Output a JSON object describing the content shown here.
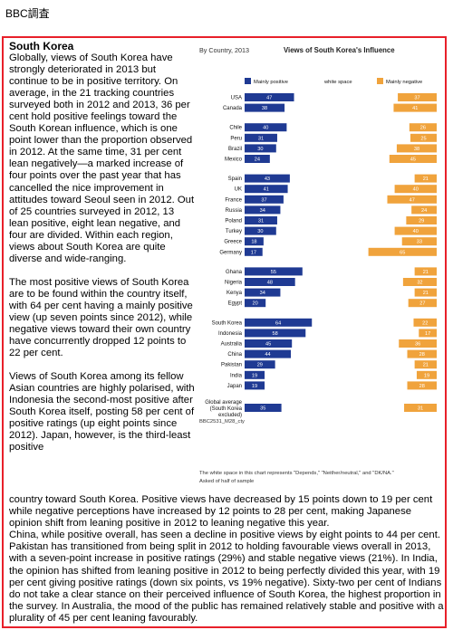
{
  "header": "BBC調査",
  "article": {
    "title": "South Korea",
    "paragraphs": [
      "Globally, views of South Korea have strongly deteriorated in 2013 but continue to be in positive territory. On average, in the 21 tracking countries surveyed both in 2012 and 2013, 36 per cent hold positive feelings toward the South Korean influence, which is one point lower than the proportion observed in 2012. At the same time, 31 per cent lean negatively—a marked increase of four points over the past year that has cancelled the nice improvement in attitudes toward Seoul seen in 2012. Out of 25 countries surveyed in 2012, 13 lean positive, eight lean negative, and four are divided. Within each region, views about South Korea are quite diverse and wide-ranging.",
      "The most positive views of South Korea are to be found within the country itself, with 64 per cent having a mainly positive view (up seven points since 2012), while negative views toward their own country have concurrently dropped 12 points to 22 per cent.",
      "Views of South Korea among its fellow Asian countries are highly polarised, with Indonesia the second-most positive after South Korea itself, posting 58 per cent of positive ratings (up eight points since 2012). Japan, however, is the third-least positive"
    ],
    "bottom_paragraphs": [
      "country toward South Korea. Positive views have decreased by 15 points down to 19 per cent while negative perceptions have increased by 12 points to 28 per cent, making Japanese opinion shift from leaning positive in 2012 to leaning negative this year.",
      " China, while positive overall, has seen a decline in positive views by eight points to 44 per cent. Pakistan has transitioned from being split in 2012 to holding favourable views overall in 2013, with a seven-point increase in positive ratings (29%) and stable negative views (21%). In India, the opinion has shifted from leaning positive in 2012 to being perfectly divided this year, with 19 per cent giving positive ratings (down six points, vs 19% negative). Sixty-two per cent of Indians do not take a clear stance on their perceived influence of South Korea, the highest proportion in the survey. In Australia, the mood of the public has remained relatively stable and positive with a plurality of 45 per cent leaning favourably."
    ]
  },
  "colors": {
    "positive": "#1f3a93",
    "negative": "#f0a33c",
    "frame": "#e8202a"
  },
  "chart_data": {
    "type": "bar",
    "subtitle": "By Country, 2013",
    "title": "Views of South Korea's Influence",
    "legend": [
      "Mainly positive",
      "white space",
      "Mainly negative"
    ],
    "groups": [
      [
        [
          "USA",
          47,
          37
        ],
        [
          "Canada",
          38,
          41
        ]
      ],
      [
        [
          "Chile",
          40,
          26
        ],
        [
          "Peru",
          31,
          25
        ],
        [
          "Brazil",
          30,
          38
        ],
        [
          "Mexico",
          24,
          45
        ]
      ],
      [
        [
          "Spain",
          43,
          21
        ],
        [
          "UK",
          41,
          40
        ],
        [
          "France",
          37,
          47
        ],
        [
          "Russia",
          34,
          24
        ],
        [
          "Poland",
          31,
          29
        ],
        [
          "Turkey",
          30,
          40
        ],
        [
          "Greece",
          18,
          33
        ],
        [
          "Germany",
          17,
          65
        ]
      ],
      [
        [
          "Ghana",
          55,
          21
        ],
        [
          "Nigeria",
          48,
          32
        ],
        [
          "Kenya",
          34,
          21
        ],
        [
          "Egypt",
          20,
          27
        ]
      ],
      [
        [
          "South Korea",
          64,
          22
        ],
        [
          "Indonesia",
          58,
          17
        ],
        [
          "Australia",
          45,
          36
        ],
        [
          "China",
          44,
          28
        ],
        [
          "Pakistan",
          29,
          21
        ],
        [
          "India",
          19,
          19
        ],
        [
          "Japan",
          19,
          28
        ]
      ],
      [
        [
          "Global average (South Korea excluded)",
          35,
          31
        ]
      ]
    ],
    "code": "BBC2531_M28_cty",
    "note": "The white space in this chart represents \"Depends,\" \"Neither/neutral,\" and \"DK/NA.\"",
    "note2": "Asked of half of sample"
  }
}
